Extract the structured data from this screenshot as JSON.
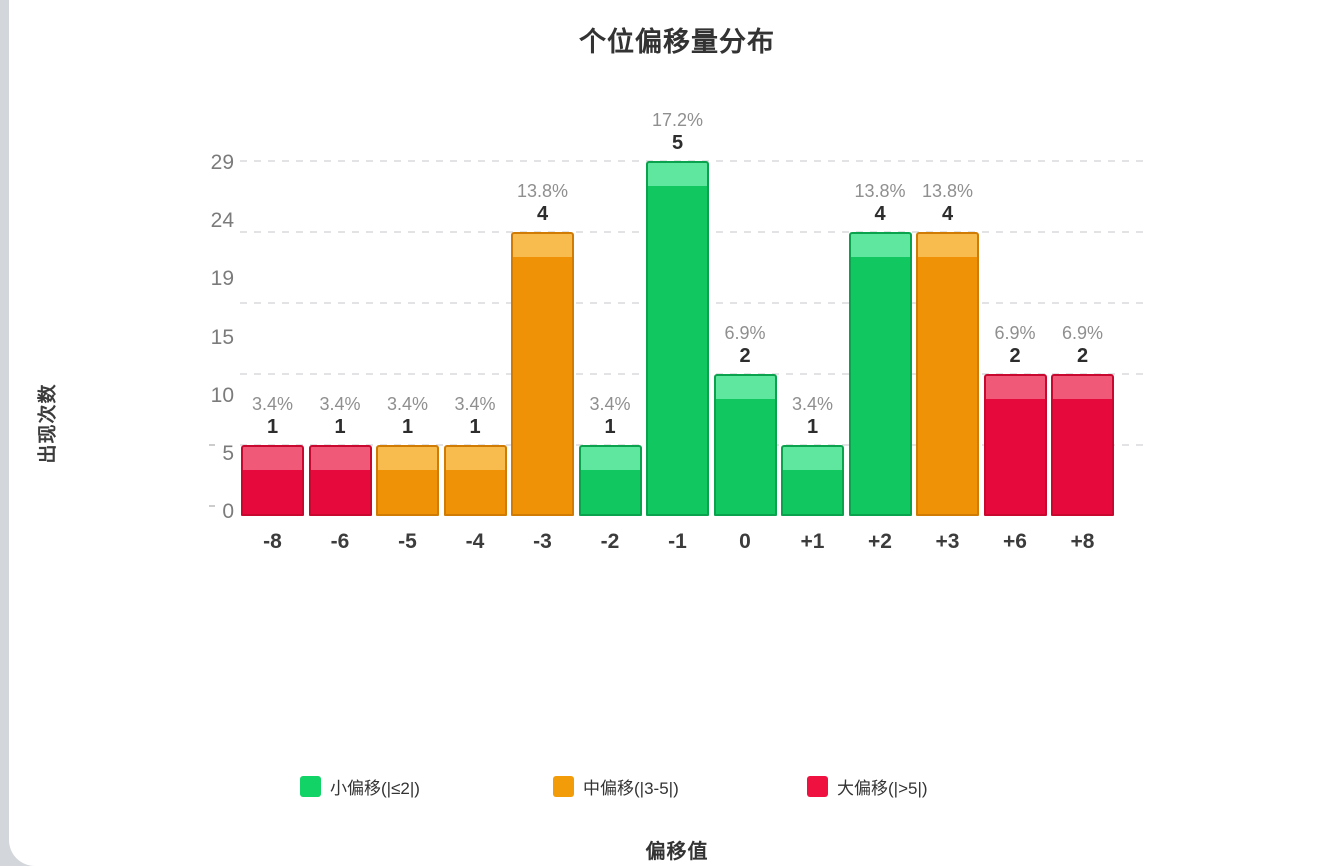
{
  "chart_data": {
    "type": "bar",
    "title": "个位偏移量分布",
    "xlabel": "偏移值",
    "ylabel": "出现次数",
    "categories": [
      "-8",
      "-6",
      "-5",
      "-4",
      "-3",
      "-2",
      "-1",
      "0",
      "+1",
      "+2",
      "+3",
      "+6",
      "+8"
    ],
    "values": [
      1,
      1,
      1,
      1,
      4,
      1,
      5,
      2,
      1,
      4,
      4,
      2,
      2
    ],
    "percent_labels": [
      "3.4%",
      "3.4%",
      "3.4%",
      "3.4%",
      "13.8%",
      "3.4%",
      "17.2%",
      "6.9%",
      "3.4%",
      "13.8%",
      "13.8%",
      "6.9%",
      "6.9%"
    ],
    "bar_groups": [
      "large",
      "large",
      "medium",
      "medium",
      "medium",
      "small",
      "small",
      "small",
      "small",
      "small",
      "medium",
      "large",
      "large"
    ],
    "y_axis_tick_labels": [
      "0",
      "5",
      "10",
      "15",
      "19",
      "24",
      "29"
    ],
    "ylim": [
      0,
      29
    ],
    "grid": "horizontal-dashed",
    "legend_position": "bottom",
    "legend": [
      {
        "label": "小偏移(|≤2|)",
        "color": "#12d365",
        "group": "small"
      },
      {
        "label": "中偏移(|3-5|)",
        "color": "#f39c0a",
        "group": "medium"
      },
      {
        "label": "大偏移(|>5|)",
        "color": "#ef1240",
        "group": "large"
      }
    ],
    "group_colors": {
      "small": {
        "band": "#5fe79f",
        "body": "#11c75f",
        "border": "#0aa24d"
      },
      "medium": {
        "band": "#f7bb4e",
        "body": "#f09205",
        "border": "#d07c04"
      },
      "large": {
        "band": "#f05a78",
        "body": "#e60a3c",
        "border": "#c9082f"
      }
    },
    "gridline_color": "#e3e3e5",
    "page_edge_color": "#d3d6da"
  }
}
